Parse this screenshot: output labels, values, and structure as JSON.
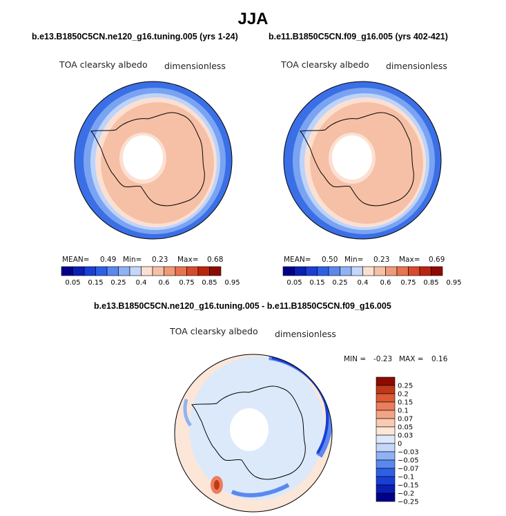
{
  "figure": {
    "title": "JJA",
    "panels": [
      {
        "case": "b.e13.B1850C5CN.ne120_g16.tuning.005 (yrs 1-24)",
        "variable": "TOA clearsky albedo",
        "units": "dimensionless",
        "mean_label": "MEAN=",
        "mean_value": "0.49",
        "min_label": "Min=",
        "min_value": "0.23",
        "max_label": "Max=",
        "max_value": "0.68"
      },
      {
        "case": "b.e11.B1850C5CN.f09_g16.005 (yrs 402-421)",
        "variable": "TOA clearsky albedo",
        "units": "dimensionless",
        "mean_label": "MEAN=",
        "mean_value": "0.50",
        "min_label": "Min=",
        "min_value": "0.23",
        "max_label": "Max=",
        "max_value": "0.69"
      }
    ],
    "diff_panel": {
      "title": "b.e13.B1850C5CN.ne120_g16.tuning.005 - b.e11.B1850C5CN.f09_g16.005",
      "variable": "TOA clearsky albedo",
      "units": "dimensionless",
      "min_label": "MIN =",
      "min_value": "-0.23",
      "max_label": "MAX =",
      "max_value": "0.16"
    }
  },
  "colors": {
    "abs_scale": [
      "#00008b",
      "#0a1fb4",
      "#1a3fd6",
      "#2e60e6",
      "#5a88ee",
      "#8fb2f5",
      "#c3d7fb",
      "#fbe0d2",
      "#f6c0a6",
      "#f09a78",
      "#e8744f",
      "#d94a2c",
      "#bb2510",
      "#8c0b00"
    ],
    "diff_scale": [
      "#00008b",
      "#0a1fb4",
      "#1a3fd6",
      "#2e60e6",
      "#5a88ee",
      "#8fb2f5",
      "#c3d7fb",
      "#dce9fb",
      "#fce6d8",
      "#f9cbb0",
      "#f3a487",
      "#ec7d5d",
      "#dc5a36",
      "#c03818",
      "#8c0b00"
    ]
  },
  "chart_data": [
    {
      "type": "heatmap",
      "title": "b.e13.B1850C5CN.ne120_g16.tuning.005 (yrs 1-24)",
      "variable": "TOA clearsky albedo",
      "units": "dimensionless",
      "projection": "south polar stereographic",
      "colorbar_ticks": [
        "0.05",
        "0.15",
        "0.25",
        "0.4",
        "0.6",
        "0.75",
        "0.85",
        "0.95"
      ],
      "mean": 0.49,
      "min": 0.23,
      "max": 0.68
    },
    {
      "type": "heatmap",
      "title": "b.e11.B1850C5CN.f09_g16.005 (yrs 402-421)",
      "variable": "TOA clearsky albedo",
      "units": "dimensionless",
      "projection": "south polar stereographic",
      "colorbar_ticks": [
        "0.05",
        "0.15",
        "0.25",
        "0.4",
        "0.6",
        "0.75",
        "0.85",
        "0.95"
      ],
      "mean": 0.5,
      "min": 0.23,
      "max": 0.69
    },
    {
      "type": "heatmap",
      "title": "b.e13.B1850C5CN.ne120_g16.tuning.005 - b.e11.B1850C5CN.f09_g16.005",
      "variable": "TOA clearsky albedo",
      "units": "dimensionless",
      "projection": "south polar stereographic",
      "colorbar_ticks": [
        "0.25",
        "0.2",
        "0.15",
        "0.1",
        "0.07",
        "0.05",
        "0.03",
        "0",
        "−0.03",
        "−0.05",
        "−0.07",
        "−0.1",
        "−0.15",
        "−0.2",
        "−0.25"
      ],
      "min": -0.23,
      "max": 0.16
    }
  ]
}
